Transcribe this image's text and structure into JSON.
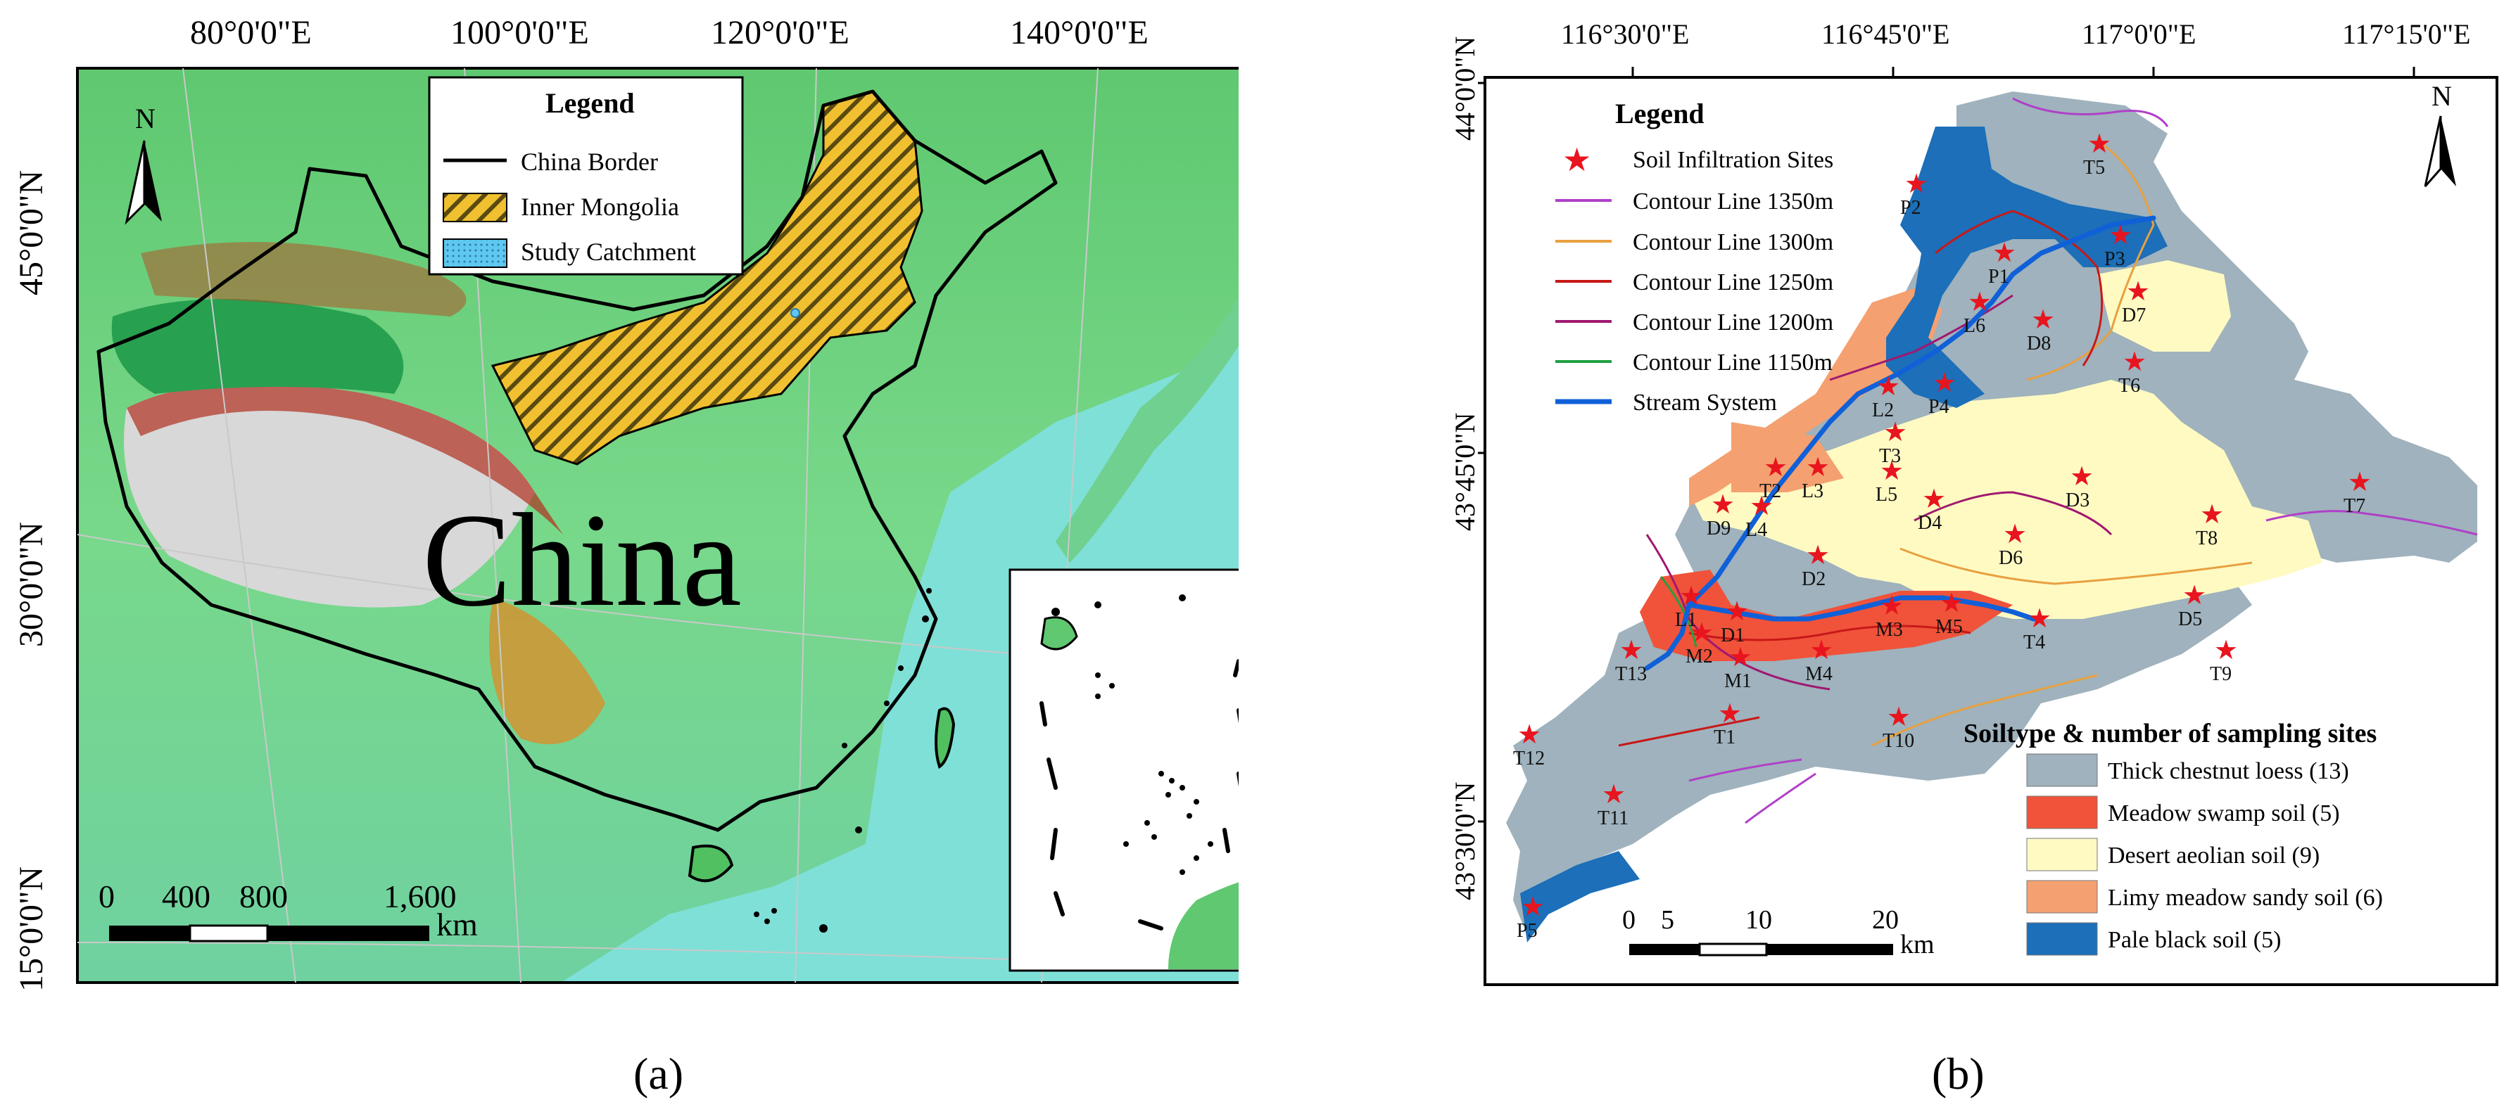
{
  "panel_a": {
    "caption": "(a)",
    "top_ticks": [
      "80°0'0\"E",
      "100°0'0\"E",
      "120°0'0\"E",
      "140°0'0\"E"
    ],
    "left_ticks": [
      "45°0'0\"N",
      "30°0'0\"N",
      "15°0'0\"N"
    ],
    "north": "N",
    "big_label": "China",
    "legend": {
      "title": "Legend",
      "items": [
        "China Border",
        "Inner Mongolia",
        "Study Catchment"
      ]
    },
    "scale_numbers": [
      "0",
      "400",
      "800",
      "1,600"
    ],
    "scale_unit": "km"
  },
  "panel_b": {
    "caption": "(b)",
    "top_ticks": [
      "116°30'0\"E",
      "116°45'0\"E",
      "117°0'0\"E",
      "117°15'0\"E"
    ],
    "left_ticks": [
      "44°0'0\"N",
      "43°45'0\"N",
      "43°30'0\"N"
    ],
    "north": "N",
    "legend": {
      "title": "Legend",
      "items": [
        {
          "label": "Soil Infiltration Sites",
          "kind": "star",
          "color": "#e8141e"
        },
        {
          "label": "Contour Line 1350m",
          "kind": "line",
          "color": "#b040c8"
        },
        {
          "label": "Contour Line 1300m",
          "kind": "line",
          "color": "#e8a040"
        },
        {
          "label": "Contour Line 1250m",
          "kind": "line",
          "color": "#c81818"
        },
        {
          "label": "Contour Line 1200m",
          "kind": "line",
          "color": "#a01870"
        },
        {
          "label": "Contour Line 1150m",
          "kind": "line",
          "color": "#20a040"
        },
        {
          "label": "Stream System",
          "kind": "line",
          "color": "#1060d8"
        }
      ]
    },
    "soil_legend": {
      "title": "Soiltype & number of sampling sites",
      "items": [
        {
          "label": "Thick chestnut loess (13)",
          "color": "#9fb2bd"
        },
        {
          "label": "Meadow swamp soil (5)",
          "color": "#f0533a"
        },
        {
          "label": "Desert aeolian soil (9)",
          "color": "#fffac2"
        },
        {
          "label": "Limy meadow sandy soil (6)",
          "color": "#f5a070"
        },
        {
          "label": "Pale black soil (5)",
          "color": "#1c6fb8"
        }
      ]
    },
    "sites": [
      "T5",
      "P2",
      "P3",
      "P1",
      "D7",
      "L6",
      "D8",
      "T6",
      "L2",
      "P4",
      "T3",
      "D3",
      "L3",
      "T2",
      "L5",
      "D9",
      "L4",
      "D4",
      "T7",
      "T8",
      "D6",
      "D2",
      "L1",
      "D1",
      "D5",
      "M5",
      "M3",
      "T4",
      "M2",
      "T9",
      "M1",
      "M4",
      "T13",
      "T1",
      "T10",
      "T12",
      "T11",
      "P5"
    ],
    "scale_numbers": [
      "0",
      "5",
      "10",
      "20"
    ],
    "scale_unit": "km"
  }
}
